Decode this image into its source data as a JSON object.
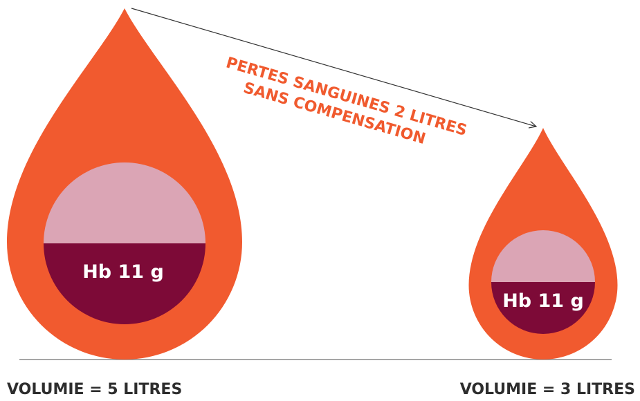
{
  "arrow_label": {
    "lines": [
      "PERTES SANGUINES 2 LITRES",
      "SANS COMPENSATION"
    ]
  },
  "drops": [
    {
      "hb_label": "Hb 11 g",
      "volume_label": "VOLUMIE = 5 LITRES"
    },
    {
      "hb_label": "Hb 11 g",
      "volume_label": "VOLUMIE = 3 LITRES"
    }
  ]
}
